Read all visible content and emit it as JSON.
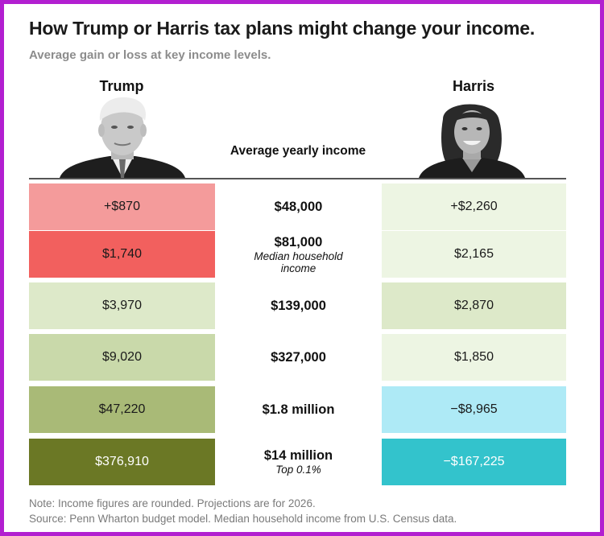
{
  "title": "How Trump or Harris tax plans might change your income.",
  "subtitle": "Average gain or loss at key income levels.",
  "candidates": {
    "left": "Trump",
    "right": "Harris"
  },
  "chart_data": {
    "type": "table",
    "column_header": "Average yearly income",
    "rows": [
      {
        "income": "$48,000",
        "note": "",
        "trump": "+$870",
        "harris": "+$2,260",
        "trump_color": "#f49b9b",
        "harris_color": "#edf5e3"
      },
      {
        "income": "$81,000",
        "note": "Median household income",
        "trump": "$1,740",
        "harris": "$2,165",
        "trump_color": "#f2605e",
        "harris_color": "#edf5e3"
      },
      {
        "income": "$139,000",
        "note": "",
        "trump": "$3,970",
        "harris": "$2,870",
        "trump_color": "#dde9c9",
        "harris_color": "#dde9c9"
      },
      {
        "income": "$327,000",
        "note": "",
        "trump": "$9,020",
        "harris": "$1,850",
        "trump_color": "#c9d9aa",
        "harris_color": "#edf5e3"
      },
      {
        "income": "$1.8 million",
        "note": "",
        "trump": "$47,220",
        "harris": "−$8,965",
        "trump_color": "#a9ba77",
        "harris_color": "#aeeaf6"
      },
      {
        "income": "$14 million",
        "note": "Top 0.1%",
        "trump": "$376,910",
        "harris": "−$167,225",
        "trump_color": "#6b7825",
        "harris_color": "#33c3cc"
      }
    ]
  },
  "footer": {
    "note": "Note: Income figures are rounded. Projections are for 2026.",
    "source": "Source: Penn Wharton budget model. Median household income from U.S. Census data."
  }
}
